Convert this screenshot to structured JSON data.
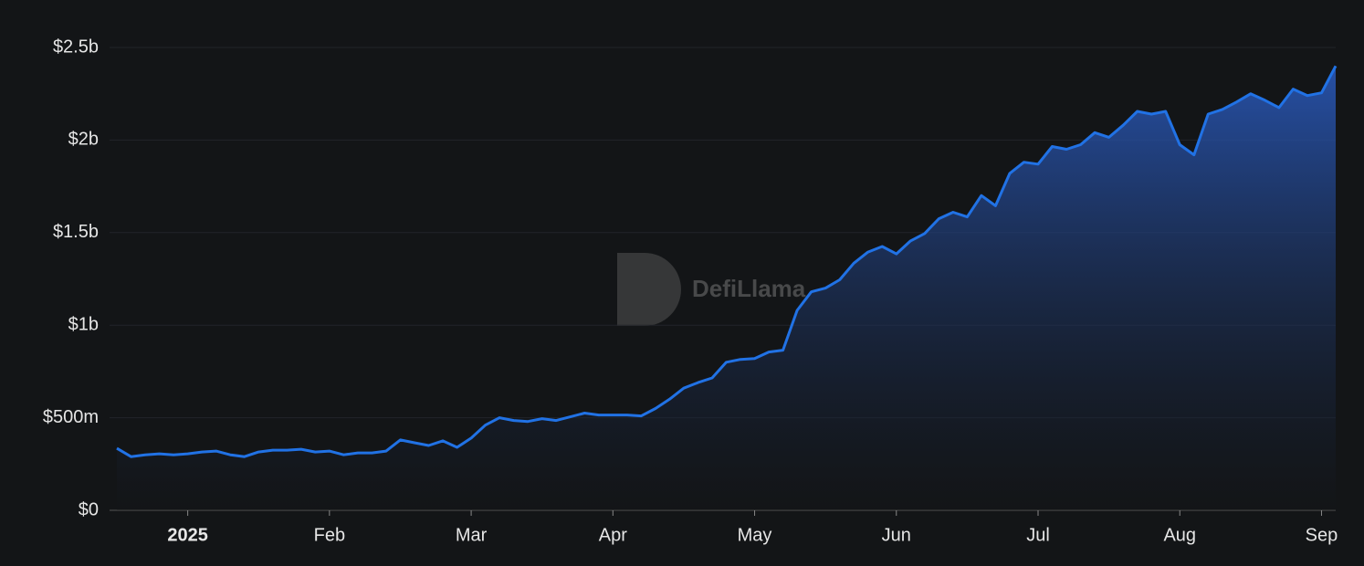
{
  "chart_data": {
    "type": "area",
    "watermark": "DefiLlama",
    "categories": [
      null,
      null,
      null,
      null,
      null,
      "2025",
      null,
      null,
      null,
      null,
      null,
      null,
      null,
      null,
      null,
      "Feb",
      null,
      null,
      null,
      null,
      null,
      null,
      null,
      null,
      null,
      "Mar",
      null,
      null,
      null,
      null,
      null,
      null,
      null,
      null,
      null,
      "Apr",
      null,
      null,
      null,
      null,
      null,
      null,
      null,
      null,
      null,
      "May",
      null,
      null,
      null,
      null,
      null,
      null,
      null,
      null,
      null,
      "Jun",
      null,
      null,
      null,
      null,
      null,
      null,
      null,
      null,
      null,
      "Jul",
      null,
      null,
      null,
      null,
      null,
      null,
      null,
      null,
      null,
      "Aug",
      null,
      null,
      null,
      null,
      null,
      null,
      null,
      null,
      null,
      "Sep",
      null
    ],
    "series": [
      {
        "name": null,
        "color": "#2172e5",
        "values": [
          335000000,
          290000000,
          300000000,
          305000000,
          300000000,
          305000000,
          315000000,
          320000000,
          300000000,
          290000000,
          315000000,
          325000000,
          325000000,
          330000000,
          315000000,
          320000000,
          300000000,
          310000000,
          310000000,
          320000000,
          380000000,
          365000000,
          350000000,
          375000000,
          340000000,
          390000000,
          460000000,
          500000000,
          485000000,
          480000000,
          495000000,
          485000000,
          505000000,
          525000000,
          515000000,
          515000000,
          515000000,
          510000000,
          550000000,
          600000000,
          660000000,
          690000000,
          715000000,
          800000000,
          815000000,
          820000000,
          855000000,
          865000000,
          1080000000,
          1180000000,
          1200000000,
          1245000000,
          1335000000,
          1395000000,
          1425000000,
          1385000000,
          1455000000,
          1495000000,
          1575000000,
          1610000000,
          1585000000,
          1700000000,
          1645000000,
          1820000000,
          1880000000,
          1870000000,
          1965000000,
          1950000000,
          1975000000,
          2040000000,
          2015000000,
          2080000000,
          2155000000,
          2140000000,
          2155000000,
          1975000000,
          1920000000,
          2140000000,
          2165000000,
          2205000000,
          2250000000,
          2215000000,
          2175000000,
          2275000000,
          2240000000,
          2255000000,
          2400000000
        ]
      }
    ],
    "ylim": [
      0,
      2500000000
    ],
    "yticks": [
      {
        "value": 0,
        "label": "$0"
      },
      {
        "value": 500000000,
        "label": "$500m"
      },
      {
        "value": 1000000000,
        "label": "$1b"
      },
      {
        "value": 1500000000,
        "label": "$1.5b"
      },
      {
        "value": 2000000000,
        "label": "$2b"
      },
      {
        "value": 2500000000,
        "label": "$2.5b"
      }
    ],
    "grid": true
  }
}
